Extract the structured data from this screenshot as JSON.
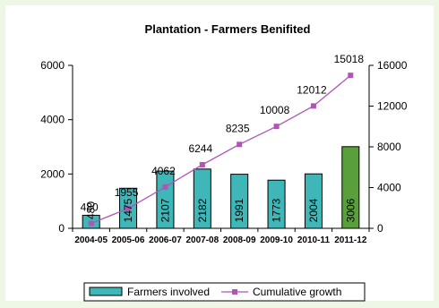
{
  "chart_data": {
    "type": "bar",
    "title": "Plantation - Farmers Benifited",
    "categories": [
      "2004-05",
      "2005-06",
      "2006-07",
      "2007-08",
      "2008-09",
      "2009-10",
      "2010-11",
      "2011-12"
    ],
    "series": [
      {
        "name": "Farmers involved",
        "type": "bar",
        "axis": "left",
        "values": [
          480,
          1475,
          2107,
          2182,
          1991,
          1773,
          2004,
          3006
        ],
        "color": "#3fb7b8",
        "highlight_color": "#5aa03a",
        "highlight_index": 7
      },
      {
        "name": "Cumulative growth",
        "type": "line",
        "axis": "right",
        "values": [
          480,
          1955,
          4062,
          6244,
          8235,
          10008,
          12012,
          15018
        ],
        "color": "#b054b5"
      }
    ],
    "y_left": {
      "min": 0,
      "max": 6000,
      "ticks": [
        0,
        2000,
        4000,
        6000
      ]
    },
    "y_right": {
      "min": 0,
      "max": 16000,
      "ticks": [
        0,
        4000,
        8000,
        12000,
        16000
      ]
    },
    "grid": false,
    "legend_position": "bottom"
  }
}
